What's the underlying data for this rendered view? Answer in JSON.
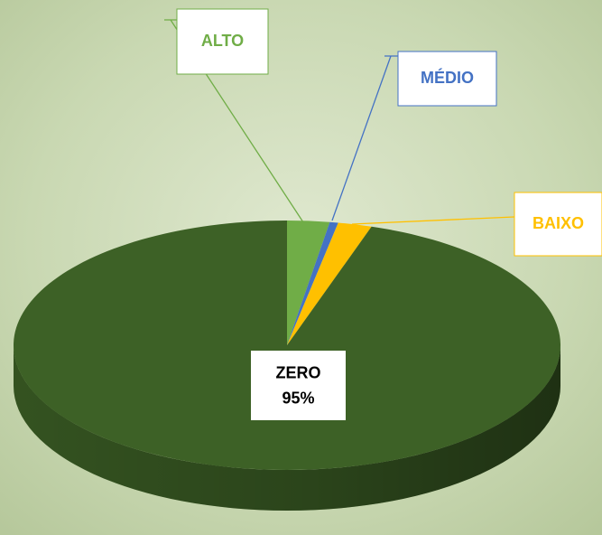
{
  "chart_data": {
    "type": "pie",
    "categories": [
      "ALTO",
      "MÉDIO",
      "BAIXO",
      "ZERO"
    ],
    "values": [
      2.5,
      0.5,
      2,
      95
    ],
    "value_labels": [
      null,
      null,
      null,
      "95%"
    ],
    "colors": [
      "#70ad47",
      "#4472c4",
      "#ffc000",
      "#3d6126"
    ]
  }
}
